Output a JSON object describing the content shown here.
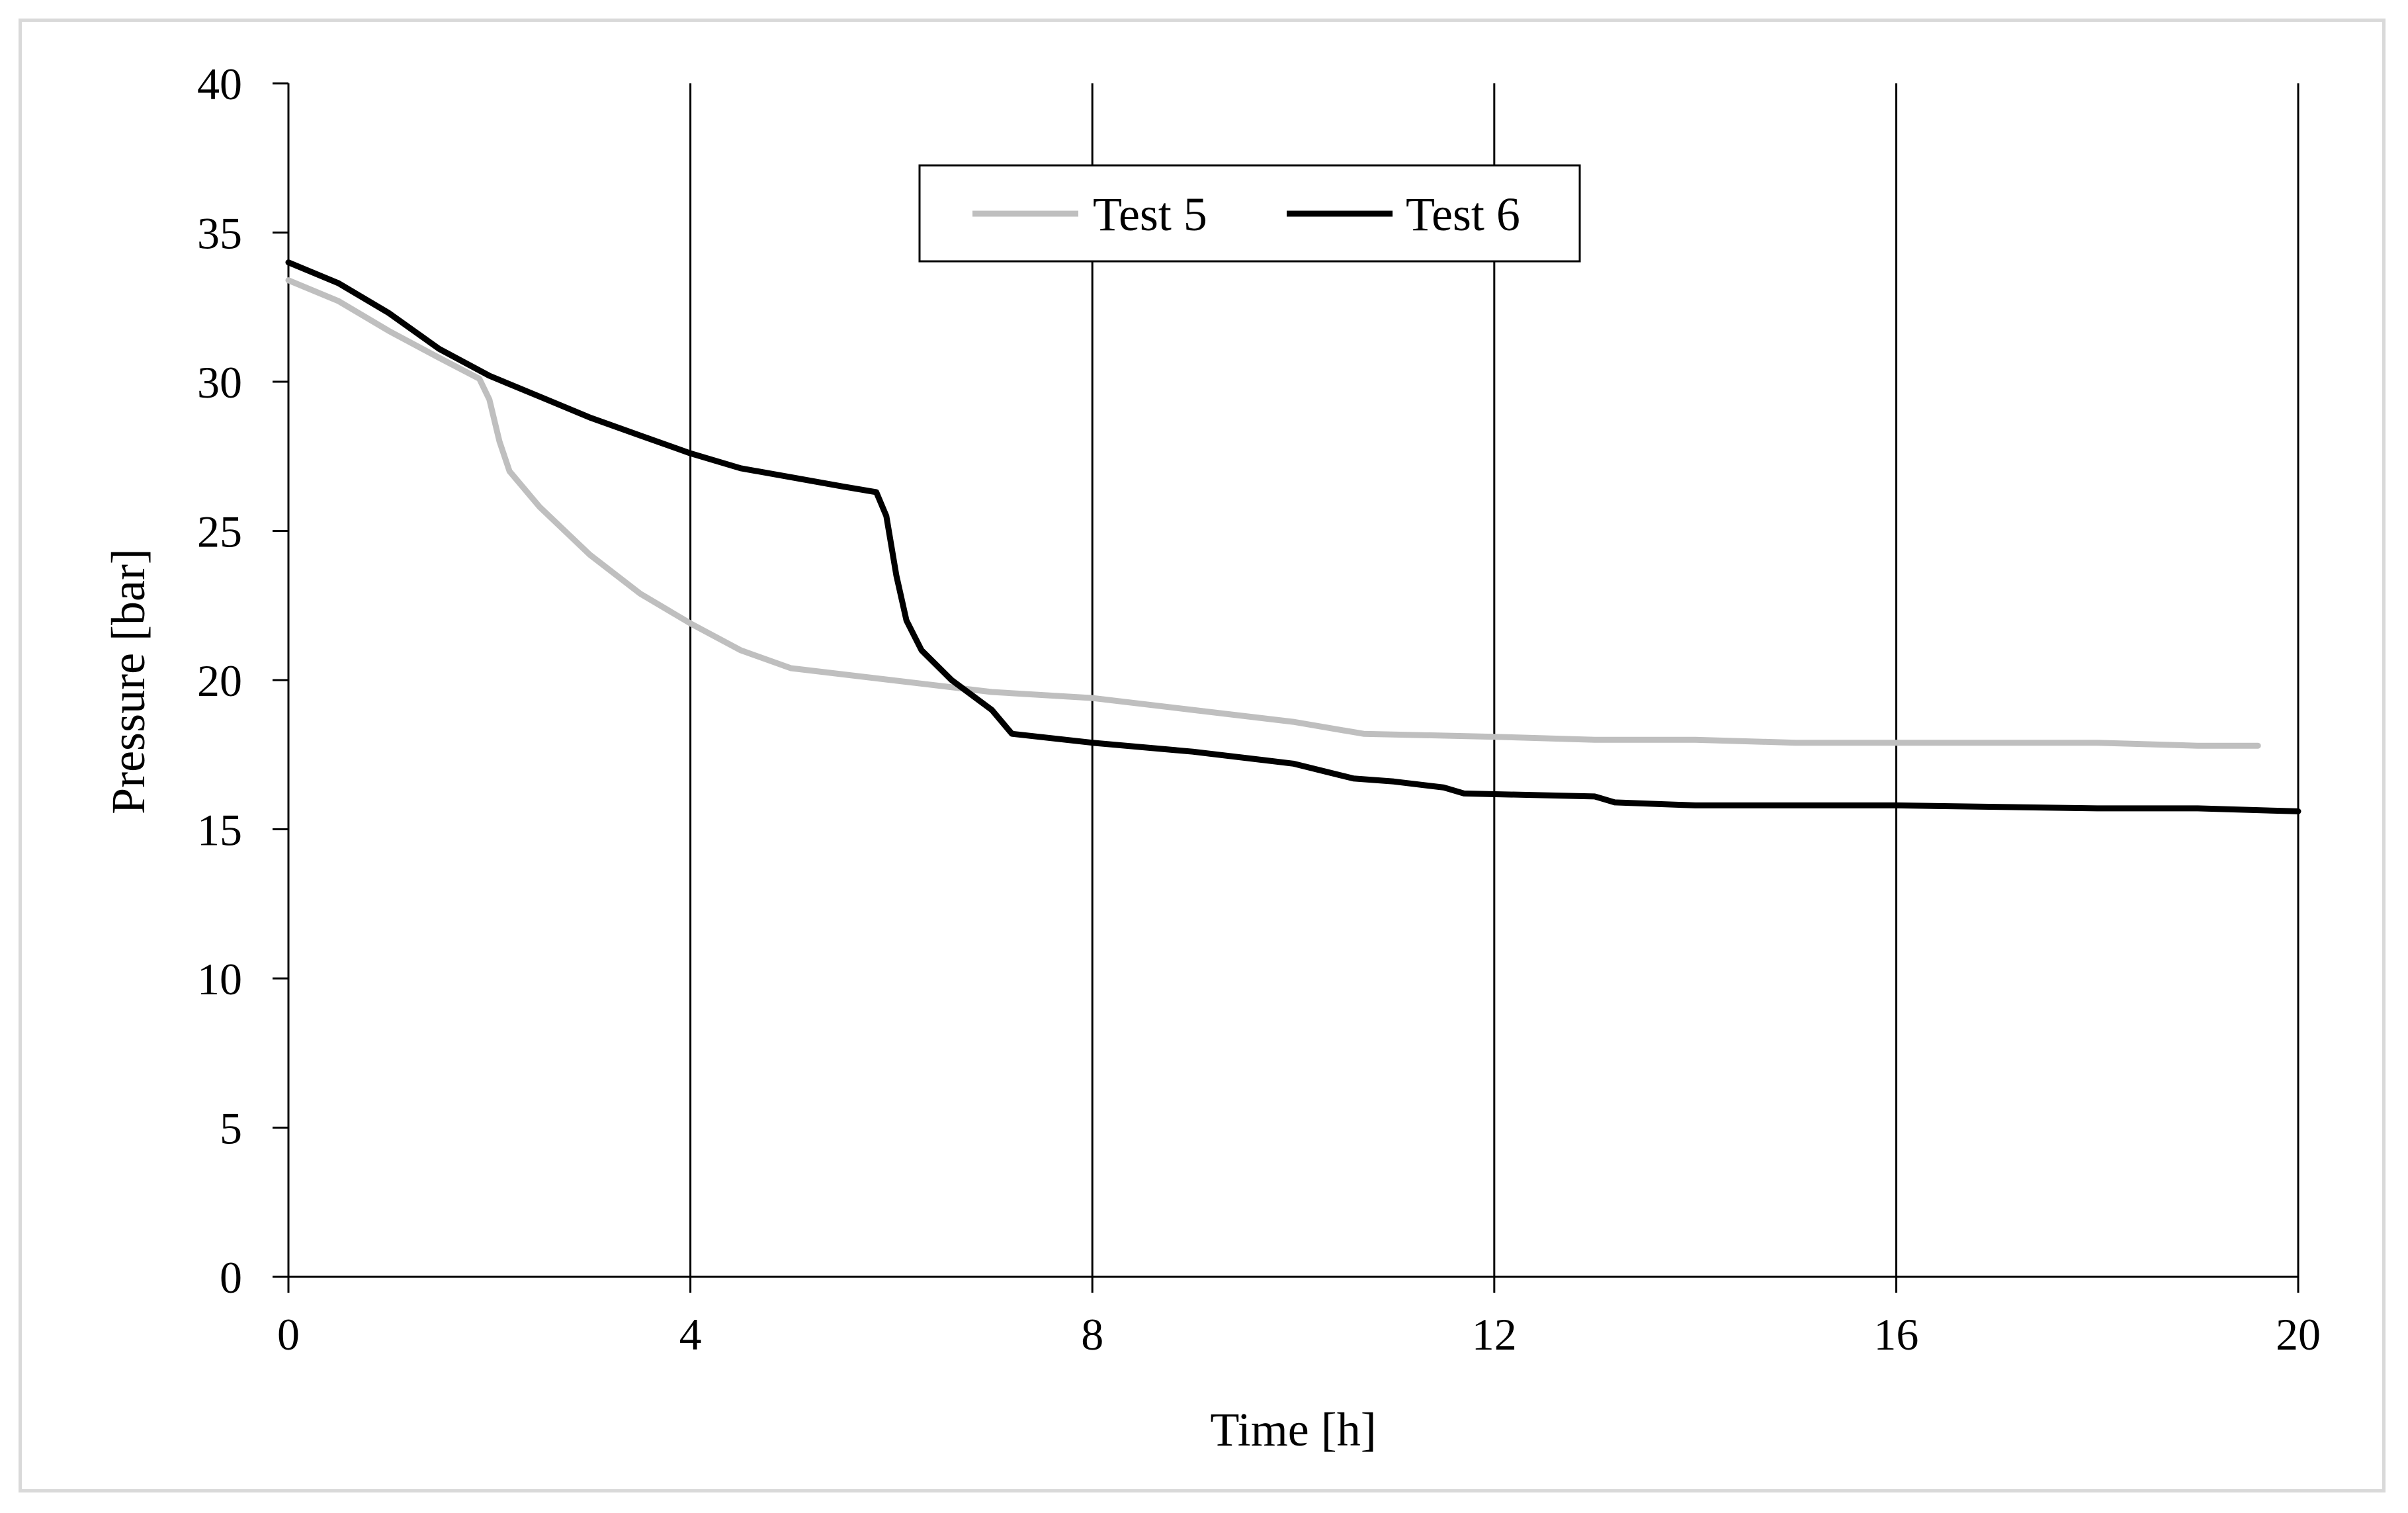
{
  "chart_data": {
    "type": "line",
    "title": "",
    "xlabel": "Time [h]",
    "ylabel": "Pressure [bar]",
    "xlim": [
      0,
      20
    ],
    "ylim": [
      0,
      40
    ],
    "x_ticks": [
      "0",
      "4",
      "8",
      "12",
      "16",
      "20"
    ],
    "y_ticks": [
      "0",
      "5",
      "10",
      "15",
      "20",
      "25",
      "30",
      "35",
      "40"
    ],
    "grid": "vertical major gridlines",
    "legend_position": "top-center",
    "series": [
      {
        "name": "Test 5",
        "color": "#bfbfbf",
        "points": [
          [
            0,
            33.4
          ],
          [
            0.5,
            32.7
          ],
          [
            1.0,
            31.7
          ],
          [
            1.5,
            30.8
          ],
          [
            1.9,
            30.1
          ],
          [
            2.0,
            29.4
          ],
          [
            2.1,
            28.0
          ],
          [
            2.2,
            27.0
          ],
          [
            2.5,
            25.8
          ],
          [
            3.0,
            24.2
          ],
          [
            3.5,
            22.9
          ],
          [
            4.0,
            21.9
          ],
          [
            4.5,
            21.0
          ],
          [
            5.0,
            20.4
          ],
          [
            5.5,
            20.2
          ],
          [
            6.0,
            20.0
          ],
          [
            7.0,
            19.6
          ],
          [
            8.0,
            19.4
          ],
          [
            9.0,
            19.0
          ],
          [
            10.0,
            18.6
          ],
          [
            10.7,
            18.2
          ],
          [
            12.0,
            18.1
          ],
          [
            13.0,
            18.0
          ],
          [
            14.0,
            18.0
          ],
          [
            15.0,
            17.9
          ],
          [
            16.0,
            17.9
          ],
          [
            17.0,
            17.9
          ],
          [
            18.0,
            17.9
          ],
          [
            19.0,
            17.8
          ],
          [
            19.6,
            17.8
          ]
        ]
      },
      {
        "name": "Test 6",
        "color": "#000000",
        "points": [
          [
            0,
            34.0
          ],
          [
            0.5,
            33.3
          ],
          [
            1.0,
            32.3
          ],
          [
            1.5,
            31.1
          ],
          [
            2.0,
            30.2
          ],
          [
            2.5,
            29.5
          ],
          [
            3.0,
            28.8
          ],
          [
            3.5,
            28.2
          ],
          [
            4.0,
            27.6
          ],
          [
            4.5,
            27.1
          ],
          [
            5.0,
            26.8
          ],
          [
            5.5,
            26.5
          ],
          [
            5.85,
            26.3
          ],
          [
            5.95,
            25.5
          ],
          [
            6.05,
            23.5
          ],
          [
            6.15,
            22.0
          ],
          [
            6.3,
            21.0
          ],
          [
            6.6,
            20.0
          ],
          [
            7.0,
            19.0
          ],
          [
            7.2,
            18.2
          ],
          [
            8.0,
            17.9
          ],
          [
            9.0,
            17.6
          ],
          [
            10.0,
            17.2
          ],
          [
            10.6,
            16.7
          ],
          [
            11.0,
            16.6
          ],
          [
            11.5,
            16.4
          ],
          [
            11.7,
            16.2
          ],
          [
            13.0,
            16.1
          ],
          [
            13.2,
            15.9
          ],
          [
            14.0,
            15.8
          ],
          [
            16.0,
            15.8
          ],
          [
            18.0,
            15.7
          ],
          [
            19.0,
            15.7
          ],
          [
            20.0,
            15.6
          ]
        ]
      }
    ]
  }
}
